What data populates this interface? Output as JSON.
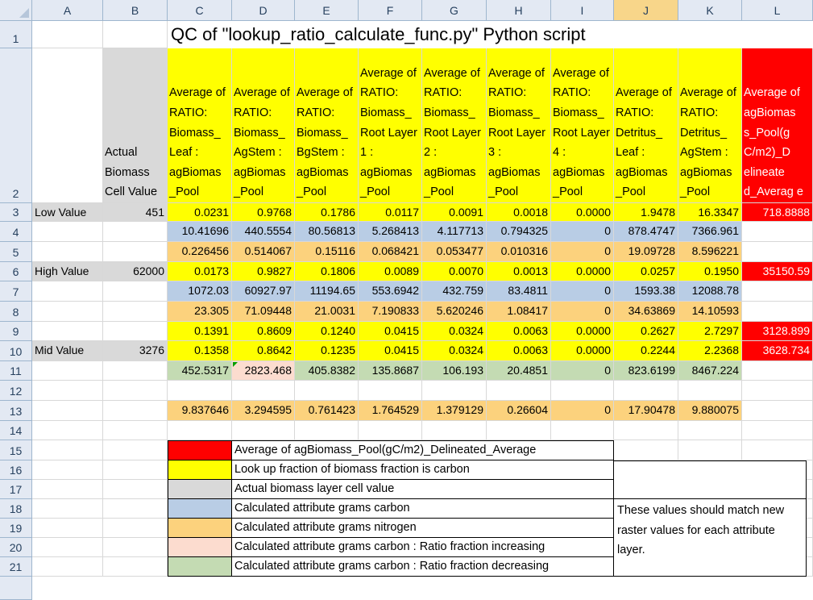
{
  "columns": [
    "A",
    "B",
    "C",
    "D",
    "E",
    "F",
    "G",
    "H",
    "I",
    "J",
    "K",
    "L"
  ],
  "selected_column": "J",
  "rows": [
    "1",
    "2",
    "3",
    "4",
    "5",
    "6",
    "7",
    "8",
    "9",
    "10",
    "11",
    "12",
    "13",
    "14",
    "15",
    "16",
    "17",
    "18",
    "19",
    "20",
    "21"
  ],
  "title": "QC of \"lookup_ratio_calculate_func.py\" Python script",
  "header_cells": {
    "B": "Actual Biomass Cell Value",
    "C": "Average of RATIO: Biomass_ Leaf : agBiomas _Pool",
    "D": "Average of RATIO: Biomass_ AgStem : agBiomas _Pool",
    "E": "Average of RATIO: Biomass_ BgStem : agBiomas _Pool",
    "F": "Average of RATIO: Biomass_ Root Layer 1 : agBiomas _Pool",
    "G": "Average of RATIO: Biomass_ Root Layer 2 : agBiomas _Pool",
    "H": "Average of RATIO: Biomass_ Root Layer 3 : agBiomas _Pool",
    "I": "Average of RATIO: Biomass_ Root Layer 4 : agBiomas _Pool",
    "J": "Average of RATIO: Detritus_ Leaf : agBiomas _Pool",
    "K": "Average of RATIO: Detritus_ AgStem : agBiomas _Pool",
    "L": "Average of agBiomas s_Pool(g C/m2)_D elineate d_Averag e"
  },
  "data_rows": [
    {
      "row": "3",
      "A": "Low Value",
      "B": "451",
      "vals": [
        "0.0231",
        "0.9768",
        "0.1786",
        "0.0117",
        "0.0091",
        "0.0018",
        "0.0000",
        "1.9478",
        "16.3347"
      ],
      "L": "718.8888",
      "fill": "ylw"
    },
    {
      "row": "4",
      "A": "",
      "B": "",
      "vals": [
        "10.41696",
        "440.5554",
        "80.56813",
        "5.268413",
        "4.117713",
        "0.794325",
        "0",
        "878.4747",
        "7366.961"
      ],
      "L": "",
      "fill": "blu"
    },
    {
      "row": "5",
      "A": "",
      "B": "",
      "vals": [
        "0.226456",
        "0.514067",
        "0.15116",
        "0.068421",
        "0.053477",
        "0.010316",
        "0",
        "19.09728",
        "8.596221"
      ],
      "L": "",
      "fill": "org"
    },
    {
      "row": "6",
      "A": "High Value",
      "B": "62000",
      "vals": [
        "0.0173",
        "0.9827",
        "0.1806",
        "0.0089",
        "0.0070",
        "0.0013",
        "0.0000",
        "0.0257",
        "0.1950"
      ],
      "L": "35150.59",
      "fill": "ylw"
    },
    {
      "row": "7",
      "A": "",
      "B": "",
      "vals": [
        "1072.03",
        "60927.97",
        "11194.65",
        "553.6942",
        "432.759",
        "83.4811",
        "0",
        "1593.38",
        "12088.78"
      ],
      "L": "",
      "fill": "blu"
    },
    {
      "row": "8",
      "A": "",
      "B": "",
      "vals": [
        "23.305",
        "71.09448",
        "21.0031",
        "7.190833",
        "5.620246",
        "1.08417",
        "0",
        "34.63869",
        "14.10593"
      ],
      "L": "",
      "fill": "org"
    },
    {
      "row": "9",
      "A": "",
      "B": "",
      "vals": [
        "0.1391",
        "0.8609",
        "0.1240",
        "0.0415",
        "0.0324",
        "0.0063",
        "0.0000",
        "0.2627",
        "2.7297"
      ],
      "L": "3128.899",
      "fill": "ylw"
    },
    {
      "row": "10",
      "A": "Mid Value",
      "B": "3276",
      "vals": [
        "0.1358",
        "0.8642",
        "0.1235",
        "0.0415",
        "0.0324",
        "0.0063",
        "0.0000",
        "0.2244",
        "2.2368"
      ],
      "L": "3628.734",
      "fill": "ylw"
    },
    {
      "row": "11",
      "A": "",
      "B": "",
      "vals": [
        "452.5317",
        "2823.468",
        "405.8382",
        "135.8687",
        "106.193",
        "20.4851",
        "0",
        "823.6199",
        "8467.224"
      ],
      "L": "",
      "fill": "grn"
    },
    {
      "row": "13",
      "A": "",
      "B": "",
      "vals": [
        "9.837646",
        "3.294595",
        "0.761423",
        "1.764529",
        "1.379129",
        "0.26604",
        "0",
        "17.90478",
        "9.880075"
      ],
      "L": "",
      "fill": "org"
    }
  ],
  "legend": [
    {
      "text": "Average of agBiomass_Pool(gC/m2)_Delineated_Average",
      "color": "#ff0000"
    },
    {
      "text": "Look up fraction of biomass fraction is carbon",
      "color": "#ffff00"
    },
    {
      "text": "Actual biomass layer cell value",
      "color": "#d9d9d9"
    },
    {
      "text": "Calculated attribute grams carbon",
      "color": "#b9cde5"
    },
    {
      "text": "Calculated attribute grams nitrogen",
      "color": "#fcd27d"
    },
    {
      "text": "Calculated attribute grams carbon : Ratio fraction increasing",
      "color": "#fcdccf"
    },
    {
      "text": "Calculated attribute grams carbon : Ratio fraction decreasing",
      "color": "#c4dbb3"
    }
  ],
  "note": "These values should match new raster values for each attribute layer."
}
